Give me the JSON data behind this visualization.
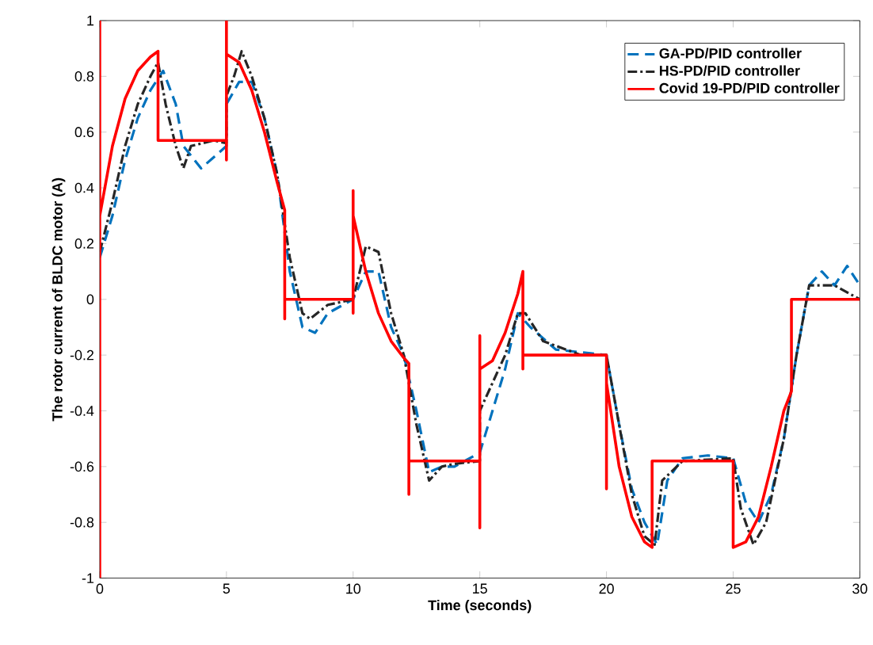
{
  "chart_data": {
    "type": "line",
    "xlabel": "Time (seconds)",
    "ylabel": "The rotor current of BLDC motor (A)",
    "xlim": [
      0,
      30
    ],
    "ylim": [
      -1,
      1
    ],
    "xticks": [
      0,
      5,
      10,
      15,
      20,
      25,
      30
    ],
    "yticks": [
      -1,
      -0.8,
      -0.6,
      -0.4,
      -0.2,
      0,
      0.2,
      0.4,
      0.6,
      0.8,
      1
    ],
    "legend": "top right",
    "grid": false,
    "series": [
      {
        "name": "GA-PD/PID controller",
        "color": "#0072bd",
        "line_style": "dashed",
        "x": [
          0,
          0.5,
          1,
          1.5,
          2,
          2.5,
          3,
          3.3,
          4,
          5,
          5,
          5.5,
          6,
          6.5,
          7,
          7.5,
          8,
          8.5,
          9,
          10,
          10.5,
          11,
          11.5,
          12,
          12.5,
          13,
          13.5,
          14,
          15,
          15.5,
          16,
          16.5,
          17,
          18,
          20,
          20.5,
          21,
          21.5,
          22,
          22.4,
          23,
          24,
          25,
          25.5,
          26,
          26.5,
          27,
          27.5,
          28,
          28.5,
          29,
          29.5,
          30
        ],
        "values": [
          0.15,
          0.3,
          0.5,
          0.65,
          0.75,
          0.82,
          0.7,
          0.55,
          0.47,
          0.55,
          0.7,
          0.78,
          0.78,
          0.65,
          0.45,
          0.1,
          -0.1,
          -0.12,
          -0.05,
          0,
          0.1,
          0.1,
          -0.1,
          -0.2,
          -0.4,
          -0.62,
          -0.6,
          -0.6,
          -0.55,
          -0.4,
          -0.25,
          -0.05,
          -0.1,
          -0.18,
          -0.2,
          -0.45,
          -0.68,
          -0.8,
          -0.88,
          -0.65,
          -0.57,
          -0.56,
          -0.57,
          -0.73,
          -0.8,
          -0.7,
          -0.5,
          -0.2,
          0.05,
          0.1,
          0.05,
          0.12,
          0.05
        ]
      },
      {
        "name": "HS-PD/PID controller",
        "color": "#262626",
        "line_style": "dashdot",
        "x": [
          0,
          0.5,
          1,
          1.5,
          2,
          2.3,
          2.6,
          3,
          3.3,
          3.6,
          4.5,
          5,
          5,
          5.3,
          5.6,
          6,
          6.5,
          7,
          7.5,
          8,
          8.3,
          9,
          10,
          10.5,
          11,
          11.5,
          12,
          12.5,
          13,
          13.5,
          14,
          15,
          15,
          15.5,
          16,
          16.5,
          16.8,
          17.5,
          19,
          20,
          20.5,
          21,
          21.5,
          21.9,
          22.2,
          23,
          25,
          25.3,
          25.8,
          26.3,
          27,
          27.5,
          28,
          28.5,
          29,
          30
        ],
        "values": [
          0.17,
          0.35,
          0.55,
          0.7,
          0.8,
          0.85,
          0.7,
          0.55,
          0.47,
          0.55,
          0.57,
          0.56,
          0.73,
          0.8,
          0.89,
          0.8,
          0.65,
          0.45,
          0.15,
          -0.05,
          -0.07,
          -0.02,
          0,
          0.19,
          0.17,
          -0.05,
          -0.2,
          -0.45,
          -0.65,
          -0.6,
          -0.59,
          -0.58,
          -0.4,
          -0.3,
          -0.2,
          -0.05,
          -0.05,
          -0.15,
          -0.2,
          -0.2,
          -0.45,
          -0.7,
          -0.85,
          -0.88,
          -0.65,
          -0.58,
          -0.57,
          -0.75,
          -0.88,
          -0.8,
          -0.5,
          -0.2,
          0.05,
          0.05,
          0.05,
          0
        ]
      },
      {
        "name": "Covid 19-PD/PID controller",
        "color": "#ff0000",
        "line_style": "solid",
        "x": [
          0,
          0,
          0,
          0.5,
          1,
          1.5,
          2,
          2.3,
          2.3,
          5,
          5,
          5,
          5,
          5.5,
          6,
          6.5,
          7,
          7.3,
          7.3,
          7.3,
          10,
          10,
          10,
          10,
          10.5,
          11,
          11.5,
          12,
          12.2,
          12.2,
          12.2,
          15,
          15,
          15,
          15,
          15.5,
          16,
          16.5,
          16.7,
          16.7,
          16.7,
          20,
          20,
          20,
          20.5,
          21,
          21.5,
          21.8,
          21.8,
          25,
          25,
          25.5,
          26,
          26.5,
          27,
          27.3,
          27.3,
          30
        ],
        "values": [
          -1,
          1,
          0.3,
          0.55,
          0.72,
          0.82,
          0.87,
          0.89,
          0.57,
          0.57,
          0.5,
          1,
          0.88,
          0.85,
          0.75,
          0.6,
          0.42,
          0.32,
          -0.07,
          0,
          0,
          -0.05,
          0.39,
          0.3,
          0.1,
          -0.05,
          -0.15,
          -0.21,
          -0.23,
          -0.7,
          -0.58,
          -0.58,
          -0.82,
          -0.13,
          -0.25,
          -0.22,
          -0.12,
          0.02,
          0.1,
          -0.25,
          -0.2,
          -0.2,
          -0.68,
          -0.3,
          -0.6,
          -0.78,
          -0.87,
          -0.89,
          -0.58,
          -0.58,
          -0.89,
          -0.87,
          -0.78,
          -0.6,
          -0.4,
          -0.33,
          0,
          0
        ]
      }
    ]
  }
}
